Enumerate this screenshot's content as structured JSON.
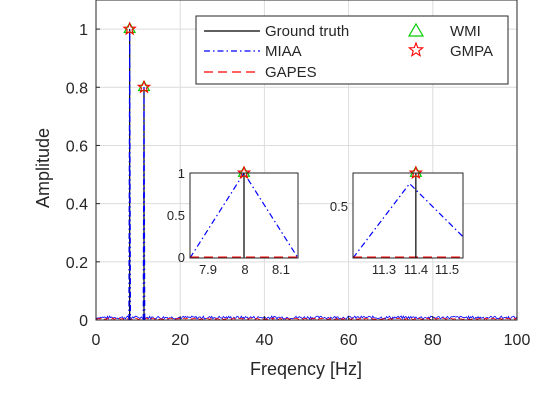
{
  "chart_data": {
    "type": "line",
    "xlabel": "Freqency [Hz]",
    "ylabel": "Amplitude",
    "xlim": [
      0,
      100
    ],
    "ylim": [
      0,
      1.1
    ],
    "x_ticks": [
      "0",
      "20",
      "40",
      "60",
      "80",
      "100"
    ],
    "y_ticks": [
      "0",
      "0.2",
      "0.4",
      "0.6",
      "0.8",
      "1"
    ],
    "grid": true,
    "legend_position": "top-right",
    "series": [
      {
        "name": "Ground truth",
        "style": "solid line",
        "color": "#000000",
        "x": [
          8,
          11.4
        ],
        "y": [
          1.0,
          0.8
        ]
      },
      {
        "name": "MIAA",
        "style": "dash-dot line",
        "color": "#0000ff",
        "x": [
          8,
          11.4
        ],
        "y": [
          1.0,
          0.8
        ]
      },
      {
        "name": "GAPES",
        "style": "dashed line",
        "color": "#ff0000",
        "x": [
          8,
          11.4
        ],
        "y": [
          0.0,
          0.0
        ]
      },
      {
        "name": "WMI",
        "style": "triangle marker",
        "color": "#00cc00",
        "x": [
          8,
          11.4
        ],
        "y": [
          1.0,
          0.8
        ]
      },
      {
        "name": "GMPA",
        "style": "pentagram marker",
        "color": "#ff0000",
        "x": [
          8,
          11.4
        ],
        "y": [
          1.0,
          0.8
        ]
      }
    ],
    "insets": [
      {
        "xlim": [
          7.85,
          8.15
        ],
        "ylim": [
          0,
          1
        ],
        "x_ticks": [
          "7.9",
          "8",
          "8.1"
        ],
        "y_ticks": [
          "0",
          "0.5",
          "1"
        ],
        "peak": {
          "x": 8,
          "y": 1.0
        },
        "miaa_line": {
          "x": [
            7.85,
            8,
            8.15
          ],
          "y": [
            0.0,
            1.0,
            0.0
          ]
        }
      },
      {
        "xlim": [
          11.2,
          11.55
        ],
        "ylim": [
          0,
          0.8
        ],
        "x_ticks": [
          "11.3",
          "11.4",
          "11.5"
        ],
        "y_ticks": [
          "0.5"
        ],
        "peak": {
          "x": 11.4,
          "y": 0.8
        },
        "miaa_line": {
          "x": [
            11.2,
            11.38,
            11.55
          ],
          "y": [
            0.0,
            0.7,
            0.2
          ]
        }
      }
    ]
  }
}
